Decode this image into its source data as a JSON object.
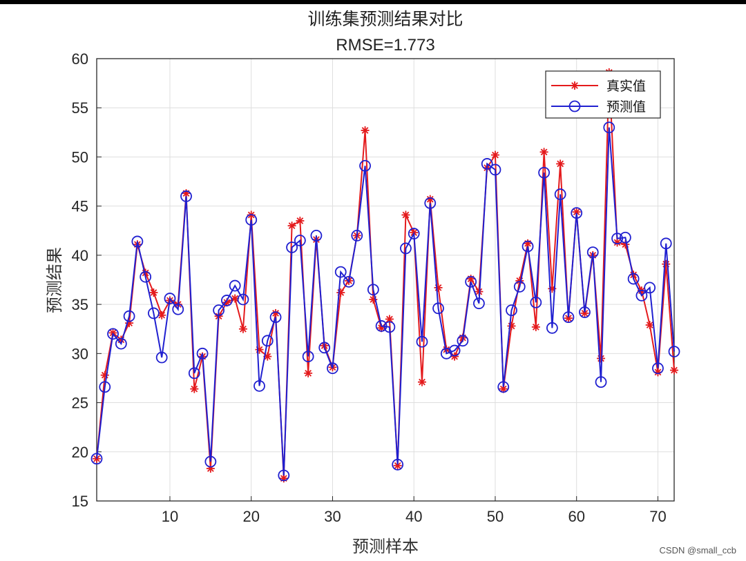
{
  "watermark": "CSDN @small_ccb",
  "chart_data": {
    "type": "line",
    "title": "训练集预测结果对比",
    "subtitle": "RMSE=1.773",
    "xlabel": "预测样本",
    "ylabel": "预测结果",
    "xlim": [
      1,
      72
    ],
    "ylim": [
      15,
      60
    ],
    "xticks": [
      10,
      20,
      30,
      40,
      50,
      60,
      70
    ],
    "yticks": [
      15,
      20,
      25,
      30,
      35,
      40,
      45,
      50,
      55,
      60
    ],
    "grid": true,
    "legend_position": "top-right",
    "x": [
      1,
      2,
      3,
      4,
      5,
      6,
      7,
      8,
      9,
      10,
      11,
      12,
      13,
      14,
      15,
      16,
      17,
      18,
      19,
      20,
      21,
      22,
      23,
      24,
      25,
      26,
      27,
      28,
      29,
      30,
      31,
      32,
      33,
      34,
      35,
      36,
      37,
      38,
      39,
      40,
      41,
      42,
      43,
      44,
      45,
      46,
      47,
      48,
      49,
      50,
      51,
      52,
      53,
      54,
      55,
      56,
      57,
      58,
      59,
      60,
      61,
      62,
      63,
      64,
      65,
      66,
      67,
      68,
      69,
      70,
      71,
      72
    ],
    "series": [
      {
        "name": "真实值",
        "color": "#e41a1c",
        "marker": "asterisk",
        "values": [
          19.3,
          27.8,
          32.1,
          31.4,
          33.1,
          41.1,
          38.2,
          36.2,
          33.9,
          35.4,
          35.0,
          46.3,
          26.4,
          29.7,
          18.3,
          33.8,
          35.2,
          35.6,
          32.5,
          44.1,
          30.4,
          29.7,
          34.1,
          17.3,
          43.0,
          43.5,
          28.0,
          41.6,
          30.8,
          28.6,
          36.2,
          37.4,
          42.0,
          52.7,
          35.5,
          32.6,
          33.5,
          18.6,
          44.1,
          42.3,
          27.1,
          45.7,
          36.7,
          30.4,
          29.7,
          31.6,
          37.6,
          36.3,
          48.9,
          50.2,
          26.4,
          32.8,
          37.4,
          41.2,
          32.7,
          50.5,
          36.6,
          49.3,
          33.6,
          44.4,
          34.1,
          40.0,
          29.5,
          58.6,
          41.3,
          41.1,
          38.0,
          36.4,
          32.9,
          28.1,
          39.1,
          28.3
        ]
      },
      {
        "name": "预测值",
        "color": "#1f1fd0",
        "marker": "circle",
        "values": [
          19.3,
          26.6,
          32.0,
          31.0,
          33.8,
          41.4,
          37.8,
          34.1,
          29.6,
          35.6,
          34.5,
          46.0,
          28.0,
          30.0,
          19.0,
          34.4,
          35.4,
          36.9,
          35.5,
          43.6,
          26.7,
          31.3,
          33.7,
          17.6,
          40.8,
          41.5,
          29.7,
          42.0,
          30.6,
          28.5,
          38.3,
          37.3,
          42.0,
          49.1,
          36.5,
          32.8,
          32.7,
          18.7,
          40.7,
          42.2,
          31.2,
          45.3,
          34.6,
          30.0,
          30.3,
          31.3,
          37.3,
          35.1,
          49.3,
          48.7,
          26.6,
          34.4,
          36.8,
          40.9,
          35.2,
          48.4,
          32.6,
          46.2,
          33.7,
          44.3,
          34.2,
          40.3,
          27.1,
          53.0,
          41.7,
          41.8,
          37.6,
          35.9,
          36.7,
          28.5,
          41.2,
          30.2
        ]
      }
    ]
  }
}
